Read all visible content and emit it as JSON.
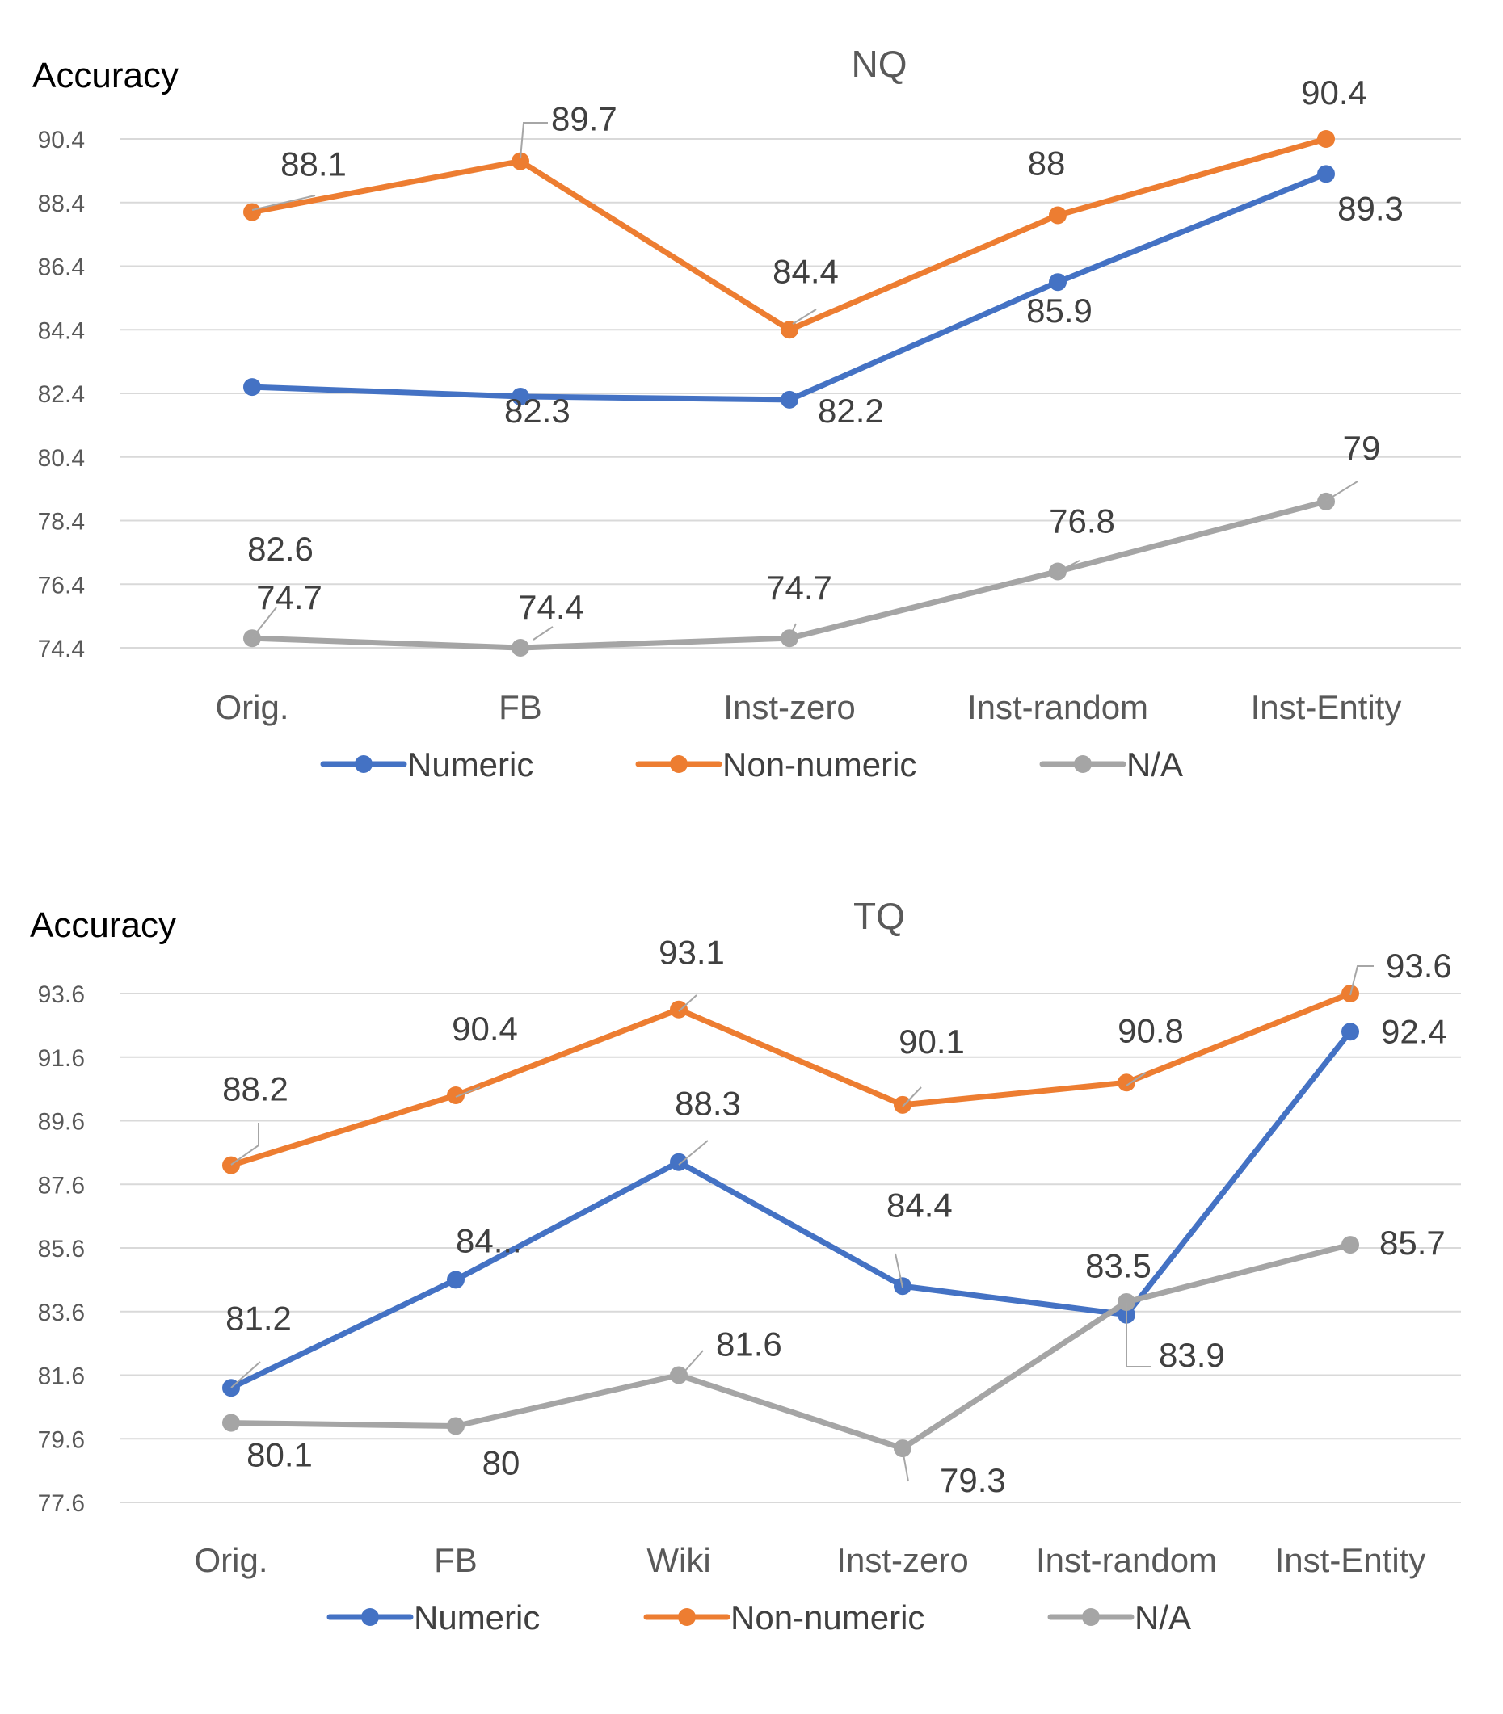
{
  "colors": {
    "Numeric": "#4472C4",
    "Non-numeric": "#ED7D31",
    "N/A": "#A5A5A5",
    "grid": "#D9D9D9",
    "text": "#404040",
    "tick": "#595959"
  },
  "chart_data": [
    {
      "type": "line",
      "title": "NQ",
      "ylabel": "Accuracy",
      "xlabel": "",
      "categories": [
        "Orig.",
        "FB",
        "Inst-zero",
        "Inst-random",
        "Inst-Entity"
      ],
      "yticks": [
        "74.4",
        "76.4",
        "78.4",
        "80.4",
        "82.4",
        "84.4",
        "86.4",
        "88.4",
        "90.4"
      ],
      "ylim": [
        74.4,
        90.4
      ],
      "grid": true,
      "legend_position": "bottom",
      "series": [
        {
          "name": "Numeric",
          "values": [
            82.6,
            82.3,
            82.2,
            85.9,
            89.3
          ],
          "labels": [
            "82.6",
            "82.3",
            "82.2",
            "85.9",
            "89.3"
          ]
        },
        {
          "name": "Non-numeric",
          "values": [
            88.1,
            89.7,
            84.4,
            88,
            90.4
          ],
          "labels": [
            "88.1",
            "89.7",
            "84.4",
            "88",
            "90.4"
          ]
        },
        {
          "name": "N/A",
          "values": [
            74.7,
            74.4,
            74.7,
            76.8,
            79
          ],
          "labels": [
            "74.7",
            "74.4",
            "74.7",
            "76.8",
            "79"
          ]
        }
      ]
    },
    {
      "type": "line",
      "title": "TQ",
      "ylabel": "Accuracy",
      "xlabel": "",
      "categories": [
        "Orig.",
        "FB",
        "Wiki",
        "Inst-zero",
        "Inst-random",
        "Inst-Entity"
      ],
      "yticks": [
        "77.6",
        "79.6",
        "81.6",
        "83.6",
        "85.6",
        "87.6",
        "89.6",
        "91.6",
        "93.6"
      ],
      "ylim": [
        77.6,
        93.6
      ],
      "grid": true,
      "legend_position": "bottom",
      "series": [
        {
          "name": "Numeric",
          "values": [
            81.2,
            84.6,
            88.3,
            84.4,
            83.5,
            92.4
          ],
          "labels": [
            "81.2",
            "84...",
            "88.3",
            "84.4",
            "83.5",
            "92.4"
          ]
        },
        {
          "name": "Non-numeric",
          "values": [
            88.2,
            90.4,
            93.1,
            90.1,
            90.8,
            93.6
          ],
          "labels": [
            "88.2",
            "90.4",
            "93.1",
            "90.1",
            "90.8",
            "93.6"
          ]
        },
        {
          "name": "N/A",
          "values": [
            80.1,
            80,
            81.6,
            79.3,
            83.9,
            85.7
          ],
          "labels": [
            "80.1",
            "80",
            "81.6",
            "79.3",
            "83.9",
            "85.7"
          ]
        }
      ]
    }
  ]
}
